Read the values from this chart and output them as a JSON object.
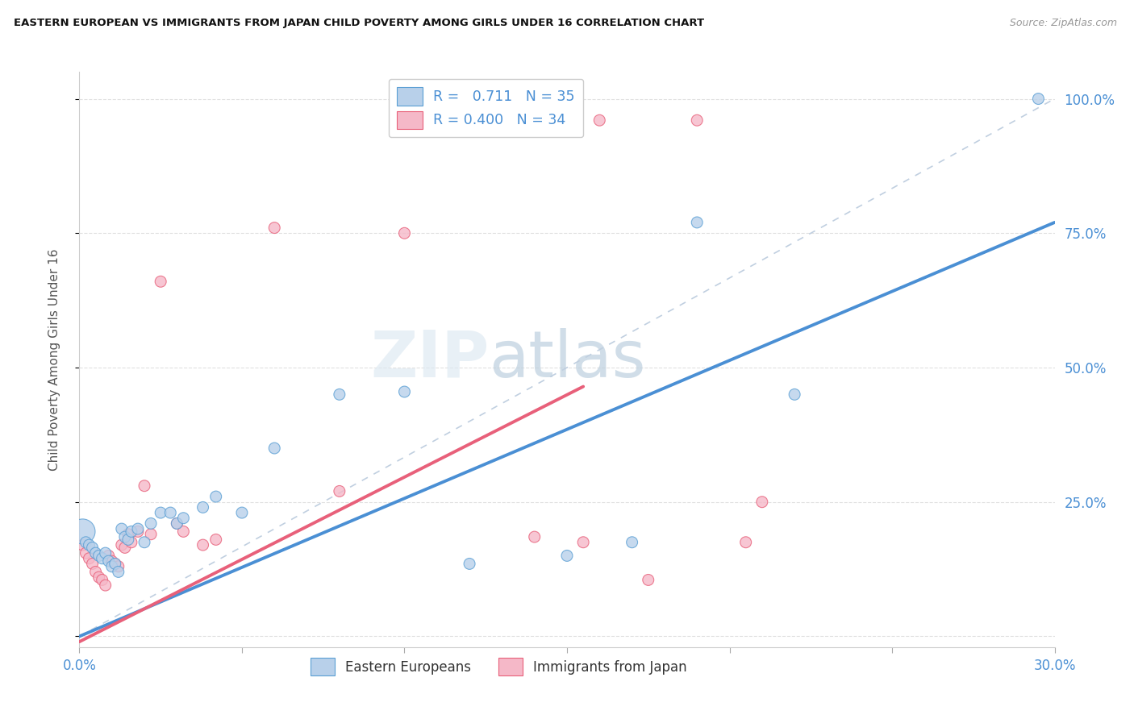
{
  "title": "EASTERN EUROPEAN VS IMMIGRANTS FROM JAPAN CHILD POVERTY AMONG GIRLS UNDER 16 CORRELATION CHART",
  "source": "Source: ZipAtlas.com",
  "ylabel": "Child Poverty Among Girls Under 16",
  "xlim": [
    0.0,
    0.3
  ],
  "ylim": [
    -0.02,
    1.05
  ],
  "yticks": [
    0.0,
    0.25,
    0.5,
    0.75,
    1.0
  ],
  "ytick_labels": [
    "",
    "25.0%",
    "50.0%",
    "75.0%",
    "100.0%"
  ],
  "xticks": [
    0.0,
    0.05,
    0.1,
    0.15,
    0.2,
    0.25,
    0.3
  ],
  "xtick_labels": [
    "0.0%",
    "",
    "",
    "",
    "",
    "",
    "30.0%"
  ],
  "blue_R": "0.711",
  "blue_N": "35",
  "pink_R": "0.400",
  "pink_N": "34",
  "blue_fill": "#b8d0ea",
  "pink_fill": "#f5b8c8",
  "blue_edge": "#5a9fd4",
  "pink_edge": "#e8607a",
  "blue_line": "#4a8fd4",
  "pink_line": "#e8607a",
  "diag_color": "#c0cfe0",
  "grid_color": "#e0e0e0",
  "watermark_zip": "ZIP",
  "watermark_atlas": "atlas",
  "blue_scatter_x": [
    0.001,
    0.002,
    0.003,
    0.004,
    0.005,
    0.006,
    0.007,
    0.008,
    0.009,
    0.01,
    0.011,
    0.012,
    0.013,
    0.014,
    0.015,
    0.016,
    0.018,
    0.02,
    0.022,
    0.025,
    0.028,
    0.03,
    0.032,
    0.038,
    0.042,
    0.05,
    0.06,
    0.08,
    0.1,
    0.12,
    0.15,
    0.17,
    0.19,
    0.22,
    0.295
  ],
  "blue_scatter_y": [
    0.195,
    0.175,
    0.17,
    0.165,
    0.155,
    0.15,
    0.145,
    0.155,
    0.14,
    0.13,
    0.135,
    0.12,
    0.2,
    0.185,
    0.18,
    0.195,
    0.2,
    0.175,
    0.21,
    0.23,
    0.23,
    0.21,
    0.22,
    0.24,
    0.26,
    0.23,
    0.35,
    0.45,
    0.455,
    0.135,
    0.15,
    0.175,
    0.77,
    0.45,
    1.0
  ],
  "blue_scatter_size": [
    500,
    100,
    100,
    100,
    100,
    100,
    100,
    100,
    100,
    100,
    100,
    100,
    100,
    100,
    100,
    100,
    100,
    100,
    100,
    100,
    100,
    100,
    100,
    100,
    100,
    100,
    100,
    100,
    100,
    100,
    100,
    100,
    100,
    100,
    100
  ],
  "pink_scatter_x": [
    0.001,
    0.002,
    0.003,
    0.004,
    0.005,
    0.006,
    0.007,
    0.008,
    0.009,
    0.01,
    0.011,
    0.012,
    0.013,
    0.014,
    0.015,
    0.016,
    0.018,
    0.02,
    0.022,
    0.025,
    0.03,
    0.032,
    0.038,
    0.042,
    0.06,
    0.08,
    0.1,
    0.14,
    0.155,
    0.16,
    0.175,
    0.19,
    0.205,
    0.21
  ],
  "pink_scatter_y": [
    0.17,
    0.155,
    0.145,
    0.135,
    0.12,
    0.11,
    0.105,
    0.095,
    0.15,
    0.14,
    0.135,
    0.13,
    0.17,
    0.165,
    0.19,
    0.175,
    0.195,
    0.28,
    0.19,
    0.66,
    0.21,
    0.195,
    0.17,
    0.18,
    0.76,
    0.27,
    0.75,
    0.185,
    0.175,
    0.96,
    0.105,
    0.96,
    0.175,
    0.25
  ],
  "pink_scatter_size": [
    100,
    100,
    100,
    100,
    100,
    100,
    100,
    100,
    100,
    100,
    100,
    100,
    100,
    100,
    100,
    100,
    100,
    100,
    100,
    100,
    100,
    100,
    100,
    100,
    100,
    100,
    100,
    100,
    100,
    100,
    100,
    100,
    100,
    100
  ],
  "blue_line_x0": 0.0,
  "blue_line_y0": 0.0,
  "blue_line_x1": 0.3,
  "blue_line_y1": 0.77,
  "pink_line_x0": 0.0,
  "pink_line_y0": -0.01,
  "pink_line_x1": 0.16,
  "pink_line_y1": 0.48
}
